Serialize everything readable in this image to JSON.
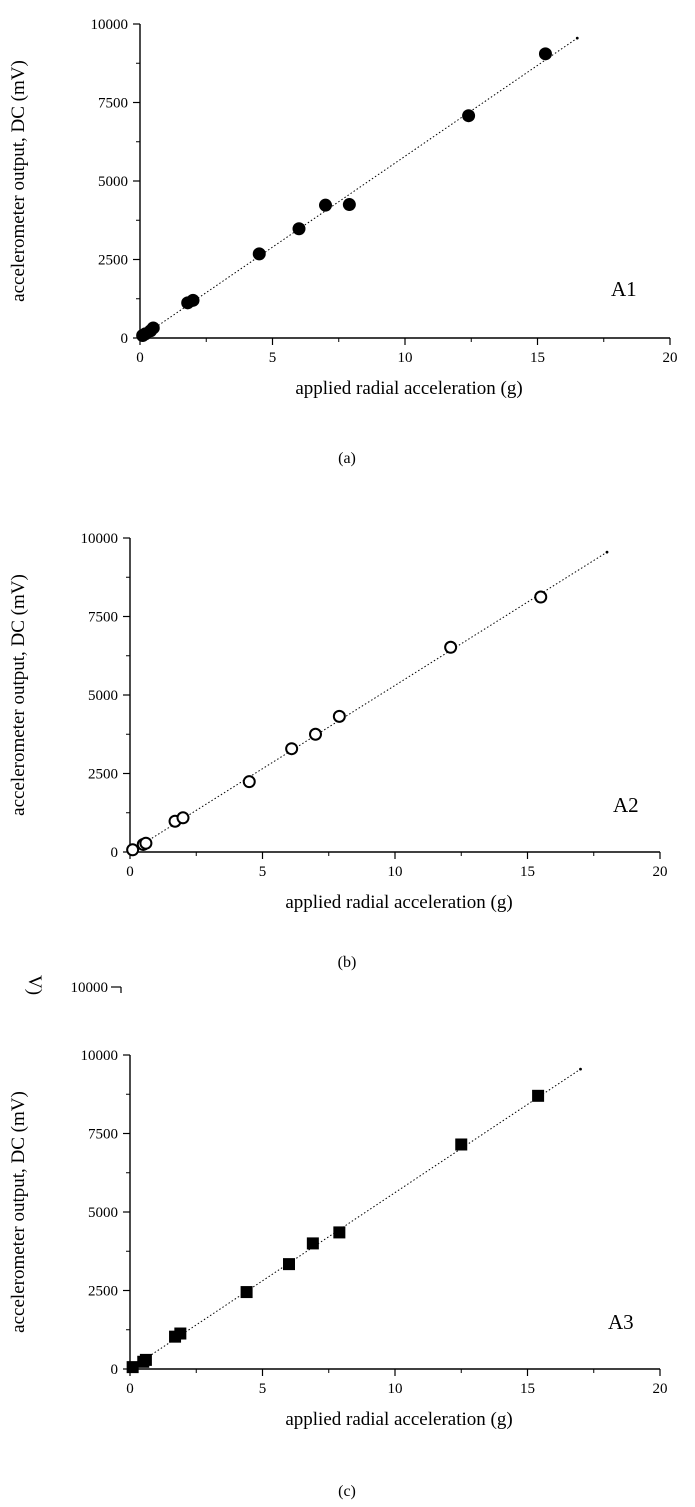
{
  "chart_data": [
    {
      "type": "scatter",
      "panel_label": "A1",
      "caption": "(a)",
      "xlabel": "applied radial acceleration (g)",
      "ylabel": "accelerometer output, DC (mV)",
      "xlim": [
        0,
        20
      ],
      "ylim": [
        0,
        10000
      ],
      "xticks": [
        "0",
        "5",
        "10",
        "15",
        "20"
      ],
      "yticks": [
        "0",
        "2500",
        "5000",
        "7500",
        "10000"
      ],
      "marker": "filled-circle",
      "grid": false,
      "x": [
        0.1,
        0.2,
        0.4,
        0.5,
        1.8,
        2.0,
        4.5,
        6.0,
        7.0,
        7.9,
        12.4,
        15.3
      ],
      "y": [
        80,
        130,
        230,
        320,
        1120,
        1200,
        2680,
        3480,
        4230,
        4250,
        7080,
        9050
      ],
      "fit_line": {
        "x": [
          0,
          16.5
        ],
        "y": [
          0,
          9550
        ]
      }
    },
    {
      "type": "scatter",
      "panel_label": "A2",
      "caption": "(b)",
      "xlabel": "applied radial acceleration (g)",
      "ylabel": "accelerometer output, DC (mV)",
      "xlim": [
        0,
        20
      ],
      "ylim": [
        0,
        10000
      ],
      "xticks": [
        "0",
        "5",
        "10",
        "15",
        "20"
      ],
      "yticks": [
        "0",
        "2500",
        "5000",
        "7500",
        "10000"
      ],
      "marker": "open-circle",
      "grid": false,
      "x": [
        0.1,
        0.5,
        0.6,
        1.7,
        2.0,
        4.5,
        6.1,
        7.0,
        7.9,
        12.1,
        15.5
      ],
      "y": [
        70,
        240,
        280,
        980,
        1090,
        2240,
        3290,
        3750,
        4320,
        6520,
        8120
      ],
      "fit_line": {
        "x": [
          0,
          18.0
        ],
        "y": [
          0,
          9550
        ]
      }
    },
    {
      "type": "scatter",
      "panel_label": "A3",
      "caption": "(c)",
      "xlabel": "applied radial acceleration (g)",
      "ylabel": "accelerometer output, DC (mV)",
      "xlim": [
        0,
        20
      ],
      "ylim": [
        0,
        10000
      ],
      "xticks": [
        "0",
        "5",
        "10",
        "15",
        "20"
      ],
      "yticks": [
        "0",
        "2500",
        "5000",
        "7500",
        "10000"
      ],
      "marker": "filled-square",
      "grid": false,
      "x": [
        0.1,
        0.5,
        0.6,
        1.7,
        1.9,
        4.4,
        6.0,
        6.9,
        7.9,
        12.5,
        15.4
      ],
      "y": [
        60,
        230,
        290,
        1030,
        1130,
        2450,
        3340,
        4000,
        4350,
        7150,
        8700
      ],
      "fit_line": {
        "x": [
          0,
          17.0
        ],
        "y": [
          0,
          9550
        ]
      }
    }
  ],
  "artifacts": {
    "bleed_ylabel_fragment": "V)",
    "bleed_tick": "10000"
  }
}
